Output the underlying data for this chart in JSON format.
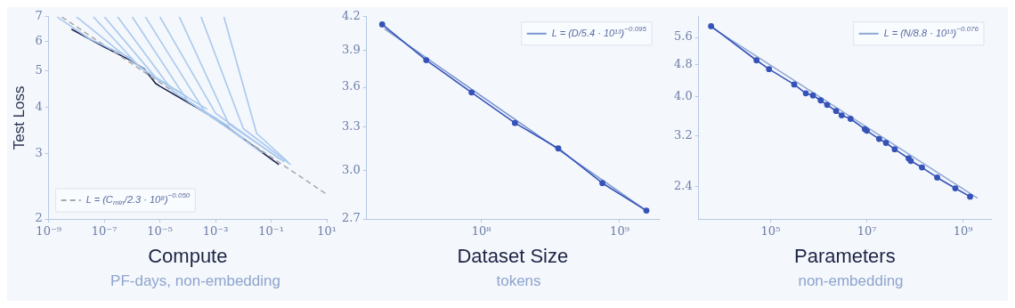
{
  "chart_data": [
    {
      "type": "line",
      "xlabel": "Compute",
      "ylabel": "Test Loss",
      "annotations": [
        "PF-days, non-embedding"
      ],
      "log": "xy",
      "grid": false,
      "legend": "bottom left",
      "xlim": [
        1e-09,
        10
      ],
      "ylim": [
        2,
        7
      ],
      "xticks": [
        {
          "value": 1e-09,
          "label": "10⁻⁹"
        },
        {
          "value": 1e-07,
          "label": "10⁻⁷"
        },
        {
          "value": 1e-05,
          "label": "10⁻⁵"
        },
        {
          "value": 0.001,
          "label": "10⁻³"
        },
        {
          "value": 0.1,
          "label": "10⁻¹"
        },
        {
          "value": 10,
          "label": "10¹"
        }
      ],
      "yticks": [
        2,
        3,
        4,
        5,
        6,
        7
      ],
      "series": [
        {
          "color": "#a9c9ee",
          "x": [
            2e-09,
            3e-08,
            1e-06
          ],
          "values": [
            7,
            6.1,
            5.4
          ]
        },
        {
          "color": "#a9c9ee",
          "x": [
            1e-08,
            3e-07,
            1e-05
          ],
          "values": [
            7,
            5.7,
            4.7
          ]
        },
        {
          "color": "#a9c9ee",
          "x": [
            4e-08,
            2e-06,
            0.0001
          ],
          "values": [
            7,
            5.1,
            4.25
          ]
        },
        {
          "color": "#a9c9ee",
          "x": [
            1e-07,
            8e-06,
            0.0005
          ],
          "values": [
            7,
            4.75,
            3.95
          ]
        },
        {
          "color": "#a9c9ee",
          "x": [
            3e-07,
            3e-05,
            0.003
          ],
          "values": [
            7,
            4.4,
            3.55
          ]
        },
        {
          "color": "#a9c9ee",
          "x": [
            1e-06,
            0.0001,
            0.01
          ],
          "values": [
            7,
            4.15,
            3.3
          ]
        },
        {
          "color": "#a9c9ee",
          "x": [
            3e-06,
            0.0004,
            0.05
          ],
          "values": [
            7,
            3.9,
            3.0
          ]
        },
        {
          "color": "#a9c9ee",
          "x": [
            1e-05,
            0.001,
            0.2
          ],
          "values": [
            7,
            3.85,
            2.9
          ]
        },
        {
          "color": "#a9c9ee",
          "x": [
            5e-05,
            0.003,
            0.3
          ],
          "values": [
            7,
            3.6,
            2.85
          ]
        },
        {
          "color": "#a9c9ee",
          "x": [
            0.0003,
            0.01,
            0.5
          ],
          "values": [
            7,
            3.5,
            2.8
          ]
        },
        {
          "color": "#a9c9ee",
          "x": [
            0.002,
            0.03,
            0.4
          ],
          "values": [
            7,
            3.4,
            2.85
          ]
        },
        {
          "name": "L = (C$_{min}$/2.3 · 10⁸)$^{−0.050}$",
          "color": "#a8a8a8",
          "line_style": "dashed",
          "x": [
            3e-09,
            10
          ],
          "values": [
            6.99,
            2.33
          ]
        },
        {
          "color": "#1c2150",
          "x": [
            6.6e-09,
            1e-07,
            8.9e-07,
            2.8e-06,
            7e-06,
            1e-05,
            0.001,
            0.19
          ],
          "values": [
            6.48,
            5.8,
            5.34,
            5.06,
            4.63,
            4.55,
            3.73,
            2.8
          ]
        }
      ]
    },
    {
      "type": "line",
      "xlabel": "Dataset Size",
      "annotations": [
        "tokens"
      ],
      "log": "xy",
      "grid": false,
      "legend": "top right",
      "xlim": [
        14800000,
        1920000000
      ],
      "ylim": [
        2.7,
        4.2
      ],
      "xticks": [
        {
          "value": 100000000,
          "label": "10⁸"
        },
        {
          "value": 1000000000,
          "label": "10⁹"
        }
      ],
      "yticks": [
        {
          "value": 2.7,
          "label": "2.7"
        },
        {
          "value": 3.0,
          "label": "3.0"
        },
        {
          "value": 3.3,
          "label": "3.3"
        },
        {
          "value": 3.6,
          "label": "3.6"
        },
        {
          "value": 3.9,
          "label": "3.9"
        },
        {
          "value": 4.2,
          "label": "4.2"
        }
      ],
      "series": [
        {
          "color": "#3553b8",
          "marker": "circle",
          "x": [
            19200000,
            40000000,
            85000000,
            175000000,
            360000000,
            750000000,
            1560000000
          ],
          "values": [
            4.13,
            3.82,
            3.56,
            3.33,
            3.15,
            2.92,
            2.75
          ]
        },
        {
          "name": "L = (D/5.4 · 10¹³)$^{−0.095}$",
          "color": "#7b96cf",
          "x": [
            20000000,
            1560000000
          ],
          "values": [
            4.09,
            2.75
          ]
        }
      ]
    },
    {
      "type": "line",
      "xlabel": "Parameters",
      "annotations": [
        "non-embedding"
      ],
      "log": "xy",
      "grid": false,
      "legend": "top right",
      "xlim": [
        3200,
        3800000000
      ],
      "ylim": [
        2.0,
        6.3
      ],
      "xticks": [
        {
          "value": 100000,
          "label": "10⁵"
        },
        {
          "value": 10000000,
          "label": "10⁷"
        },
        {
          "value": 1000000000,
          "label": "10⁹"
        }
      ],
      "yticks": [
        {
          "value": 2.4,
          "label": "2.4"
        },
        {
          "value": 3.2,
          "label": "3.2"
        },
        {
          "value": 4.0,
          "label": "4.0"
        },
        {
          "value": 4.8,
          "label": "4.8"
        },
        {
          "value": 5.6,
          "label": "5.6"
        }
      ],
      "series": [
        {
          "color": "#3553b8",
          "marker": "circle",
          "x": [
            5800,
            51000,
            93000,
            310000,
            540000,
            760000,
            1100000,
            1500000,
            2300000,
            3000000,
            4600000,
            9100000,
            10000000,
            18000000,
            25000000,
            38000000,
            74000000,
            82000000,
            140000000,
            290000000,
            690000000,
            1400000000
          ],
          "values": [
            5.97,
            4.92,
            4.68,
            4.29,
            4.08,
            4.03,
            3.92,
            3.82,
            3.69,
            3.6,
            3.53,
            3.33,
            3.3,
            3.15,
            3.08,
            2.97,
            2.82,
            2.78,
            2.68,
            2.53,
            2.38,
            2.27
          ]
        },
        {
          "name": "L = (N/8.8 · 10¹³)$^{−0.076}$",
          "color": "#8ea6d6",
          "x": [
            5800,
            2000000000
          ],
          "values": [
            5.94,
            2.25
          ]
        }
      ]
    }
  ]
}
